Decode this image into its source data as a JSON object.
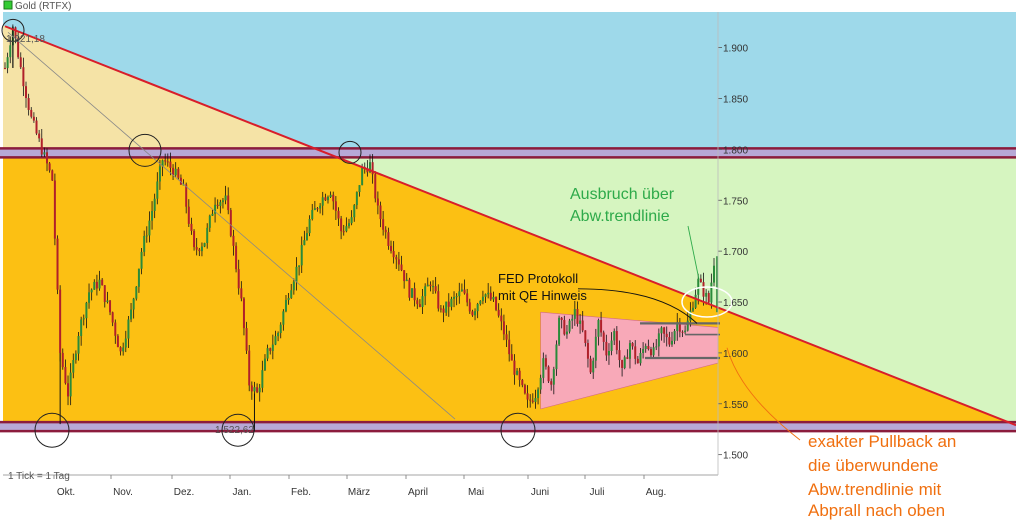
{
  "chart_data": {
    "type": "candlestick",
    "title": "Gold (RTFX)",
    "footnote": "1 Tick = 1 Tag",
    "ylim": [
      1480,
      1935
    ],
    "yticks": [
      1500,
      1550,
      1600,
      1650,
      1700,
      1750,
      1800,
      1850,
      1900
    ],
    "ytick_labels": [
      "1.500",
      "1.550",
      "1.600",
      "1.650",
      "1.700",
      "1.750",
      "1.800",
      "1.850",
      "1.900"
    ],
    "months": [
      "Okt.",
      "Nov.",
      "Dez.",
      "Jan.",
      "Feb.",
      "März",
      "April",
      "Mai",
      "Juni",
      "Juli",
      "Aug."
    ],
    "high_label": "1.921,18",
    "low_label": "1.522,62",
    "price_path": [
      [
        0,
        1880
      ],
      [
        3,
        1921
      ],
      [
        6,
        1880
      ],
      [
        10,
        1830
      ],
      [
        14,
        1800
      ],
      [
        18,
        1770
      ],
      [
        21,
        1600
      ],
      [
        24,
        1560
      ],
      [
        28,
        1620
      ],
      [
        32,
        1660
      ],
      [
        36,
        1670
      ],
      [
        40,
        1640
      ],
      [
        44,
        1600
      ],
      [
        48,
        1640
      ],
      [
        52,
        1700
      ],
      [
        56,
        1740
      ],
      [
        60,
        1790
      ],
      [
        64,
        1780
      ],
      [
        68,
        1760
      ],
      [
        72,
        1700
      ],
      [
        76,
        1710
      ],
      [
        80,
        1750
      ],
      [
        84,
        1750
      ],
      [
        86,
        1720
      ],
      [
        90,
        1650
      ],
      [
        93,
        1570
      ],
      [
        96,
        1560
      ],
      [
        100,
        1600
      ],
      [
        104,
        1620
      ],
      [
        108,
        1660
      ],
      [
        112,
        1690
      ],
      [
        116,
        1730
      ],
      [
        120,
        1750
      ],
      [
        124,
        1760
      ],
      [
        128,
        1720
      ],
      [
        132,
        1730
      ],
      [
        136,
        1780
      ],
      [
        139,
        1785
      ],
      [
        142,
        1740
      ],
      [
        146,
        1710
      ],
      [
        150,
        1690
      ],
      [
        154,
        1660
      ],
      [
        158,
        1650
      ],
      [
        162,
        1670
      ],
      [
        166,
        1640
      ],
      [
        170,
        1650
      ],
      [
        174,
        1660
      ],
      [
        178,
        1640
      ],
      [
        182,
        1660
      ],
      [
        186,
        1650
      ],
      [
        190,
        1620
      ],
      [
        193,
        1590
      ],
      [
        196,
        1570
      ],
      [
        199,
        1550
      ],
      [
        202,
        1560
      ],
      [
        205,
        1590
      ],
      [
        208,
        1570
      ],
      [
        211,
        1630
      ],
      [
        214,
        1620
      ],
      [
        217,
        1640
      ],
      [
        220,
        1620
      ],
      [
        223,
        1580
      ],
      [
        226,
        1630
      ],
      [
        229,
        1600
      ],
      [
        232,
        1620
      ],
      [
        235,
        1580
      ],
      [
        238,
        1610
      ],
      [
        241,
        1590
      ],
      [
        244,
        1610
      ],
      [
        247,
        1600
      ],
      [
        250,
        1620
      ],
      [
        253,
        1610
      ],
      [
        256,
        1630
      ],
      [
        259,
        1620
      ],
      [
        262,
        1650
      ],
      [
        264,
        1670
      ],
      [
        266,
        1660
      ],
      [
        268,
        1650
      ],
      [
        270,
        1690
      ]
    ],
    "zones": [
      {
        "name": "blue",
        "from": 1797,
        "to": 1935,
        "color": "#9ed9ea"
      },
      {
        "name": "green",
        "from": 1528,
        "to": 1797,
        "color": "#d6f5c0"
      },
      {
        "name": "orange",
        "from": 1528,
        "to": 1797,
        "color": "#fcc013"
      },
      {
        "name": "beige",
        "from": 1797,
        "to": 1920,
        "color": "#f5e3a6"
      },
      {
        "name": "pink",
        "from": 1545,
        "to": 1640,
        "color": "#f8a9b8"
      }
    ],
    "horizontal_levels": [
      1797,
      1528
    ],
    "grid": false
  },
  "annotations": {
    "breakout_line1": "Ausbruch über",
    "breakout_line2": "Abw.trendlinie",
    "fed_line1": "FED Protokoll",
    "fed_line2": "mit QE Hinweis",
    "pullback_lines": [
      "exakter Pullback an",
      "die überwundene",
      "Abw.trendlinie mit",
      "Abprall nach oben"
    ]
  },
  "colors": {
    "trendline": "#d81e2a",
    "level_band": "#b7a8d6",
    "level_edge": "#8b1c3c",
    "candle_up": "#2a8a3a",
    "candle_down": "#b0202a",
    "green_text": "#2eaa4a",
    "orange_text": "#f07010"
  }
}
